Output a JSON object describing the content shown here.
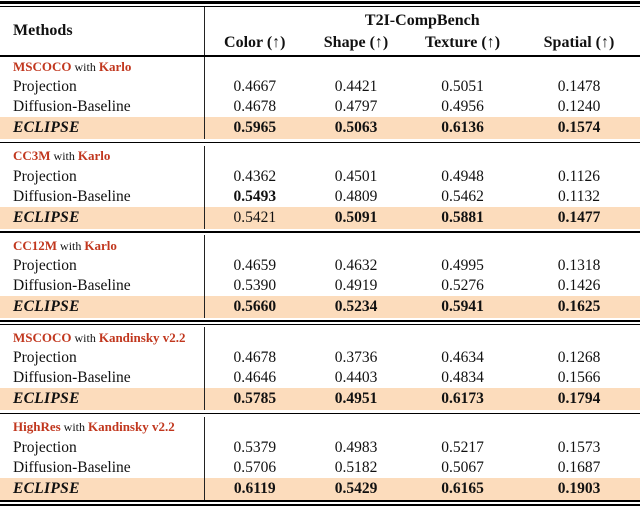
{
  "table": {
    "header": {
      "methods": "Methods",
      "benchmark": "T2I-CompBench",
      "columns": [
        "Color (↑)",
        "Shape (↑)",
        "Texture (↑)",
        "Spatial (↑)"
      ]
    },
    "groups": [
      {
        "dataset": "MSCOCO",
        "connector": "with",
        "model": "Karlo",
        "separator_before": "none",
        "rows": [
          {
            "method": "Projection",
            "emphasis": "none",
            "highlight": false,
            "values": [
              "0.4667",
              "0.4421",
              "0.5051",
              "0.1478"
            ],
            "bold": [
              false,
              false,
              false,
              false
            ]
          },
          {
            "method": "Diffusion-Baseline",
            "emphasis": "none",
            "highlight": false,
            "values": [
              "0.4678",
              "0.4797",
              "0.4956",
              "0.1240"
            ],
            "bold": [
              false,
              false,
              false,
              false
            ]
          },
          {
            "method": "ECLIPSE",
            "emphasis": "bold-italic",
            "highlight": true,
            "values": [
              "0.5965",
              "0.5063",
              "0.6136",
              "0.1574"
            ],
            "bold": [
              true,
              true,
              true,
              true
            ]
          }
        ]
      },
      {
        "dataset": "CC3M",
        "connector": "with",
        "model": "Karlo",
        "separator_before": "single",
        "rows": [
          {
            "method": "Projection",
            "emphasis": "none",
            "highlight": false,
            "values": [
              "0.4362",
              "0.4501",
              "0.4948",
              "0.1126"
            ],
            "bold": [
              false,
              false,
              false,
              false
            ]
          },
          {
            "method": "Diffusion-Baseline",
            "emphasis": "none",
            "highlight": false,
            "values": [
              "0.5493",
              "0.4809",
              "0.5462",
              "0.1132"
            ],
            "bold": [
              true,
              false,
              false,
              false
            ]
          },
          {
            "method": "ECLIPSE",
            "emphasis": "bold-italic",
            "highlight": true,
            "values": [
              "0.5421",
              "0.5091",
              "0.5881",
              "0.1477"
            ],
            "bold": [
              false,
              true,
              true,
              true
            ]
          }
        ]
      },
      {
        "dataset": "CC12M",
        "connector": "with",
        "model": "Karlo",
        "separator_before": "single",
        "rows": [
          {
            "method": "Projection",
            "emphasis": "none",
            "highlight": false,
            "values": [
              "0.4659",
              "0.4632",
              "0.4995",
              "0.1318"
            ],
            "bold": [
              false,
              false,
              false,
              false
            ]
          },
          {
            "method": "Diffusion-Baseline",
            "emphasis": "none",
            "highlight": false,
            "values": [
              "0.5390",
              "0.4919",
              "0.5276",
              "0.1426"
            ],
            "bold": [
              false,
              false,
              false,
              false
            ]
          },
          {
            "method": "ECLIPSE",
            "emphasis": "bold-italic",
            "highlight": true,
            "values": [
              "0.5660",
              "0.5234",
              "0.5941",
              "0.1625"
            ],
            "bold": [
              true,
              true,
              true,
              true
            ]
          }
        ]
      },
      {
        "dataset": "MSCOCO",
        "connector": "with",
        "model": "Kandinsky v2.2",
        "separator_before": "double",
        "rows": [
          {
            "method": "Projection",
            "emphasis": "none",
            "highlight": false,
            "values": [
              "0.4678",
              "0.3736",
              "0.4634",
              "0.1268"
            ],
            "bold": [
              false,
              false,
              false,
              false
            ]
          },
          {
            "method": "Diffusion-Baseline",
            "emphasis": "none",
            "highlight": false,
            "values": [
              "0.4646",
              "0.4403",
              "0.4834",
              "0.1566"
            ],
            "bold": [
              false,
              false,
              false,
              false
            ]
          },
          {
            "method": "ECLIPSE",
            "emphasis": "bold-italic",
            "highlight": true,
            "values": [
              "0.5785",
              "0.4951",
              "0.6173",
              "0.1794"
            ],
            "bold": [
              true,
              true,
              true,
              true
            ]
          }
        ]
      },
      {
        "dataset": "HighRes",
        "connector": "with",
        "model": "Kandinsky v2.2",
        "separator_before": "single",
        "rows": [
          {
            "method": "Projection",
            "emphasis": "none",
            "highlight": false,
            "values": [
              "0.5379",
              "0.4983",
              "0.5217",
              "0.1573"
            ],
            "bold": [
              false,
              false,
              false,
              false
            ]
          },
          {
            "method": "Diffusion-Baseline",
            "emphasis": "none",
            "highlight": false,
            "values": [
              "0.5706",
              "0.5182",
              "0.5067",
              "0.1687"
            ],
            "bold": [
              false,
              false,
              false,
              false
            ]
          },
          {
            "method": "ECLIPSE",
            "emphasis": "bold-italic",
            "highlight": true,
            "values": [
              "0.6119",
              "0.5429",
              "0.6165",
              "0.1903"
            ],
            "bold": [
              true,
              true,
              true,
              true
            ]
          }
        ]
      }
    ]
  },
  "colors": {
    "highlight_row": "#fcdcbc",
    "accent_red": "#c1371e",
    "rule": "#000000",
    "text": "#111111"
  }
}
